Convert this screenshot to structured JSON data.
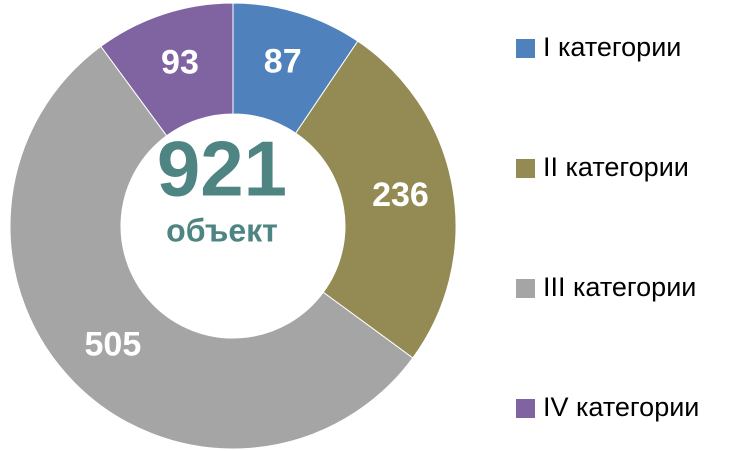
{
  "chart_data": {
    "type": "donut",
    "center_value": 921,
    "center_label": "объект",
    "categories": [
      "I категории",
      "II категории",
      "III категории",
      "IV категории"
    ],
    "values": [
      87,
      236,
      505,
      93
    ],
    "colors": [
      "#4f81bd",
      "#948a54",
      "#a5a5a5",
      "#8064a2"
    ],
    "legend": "right"
  }
}
